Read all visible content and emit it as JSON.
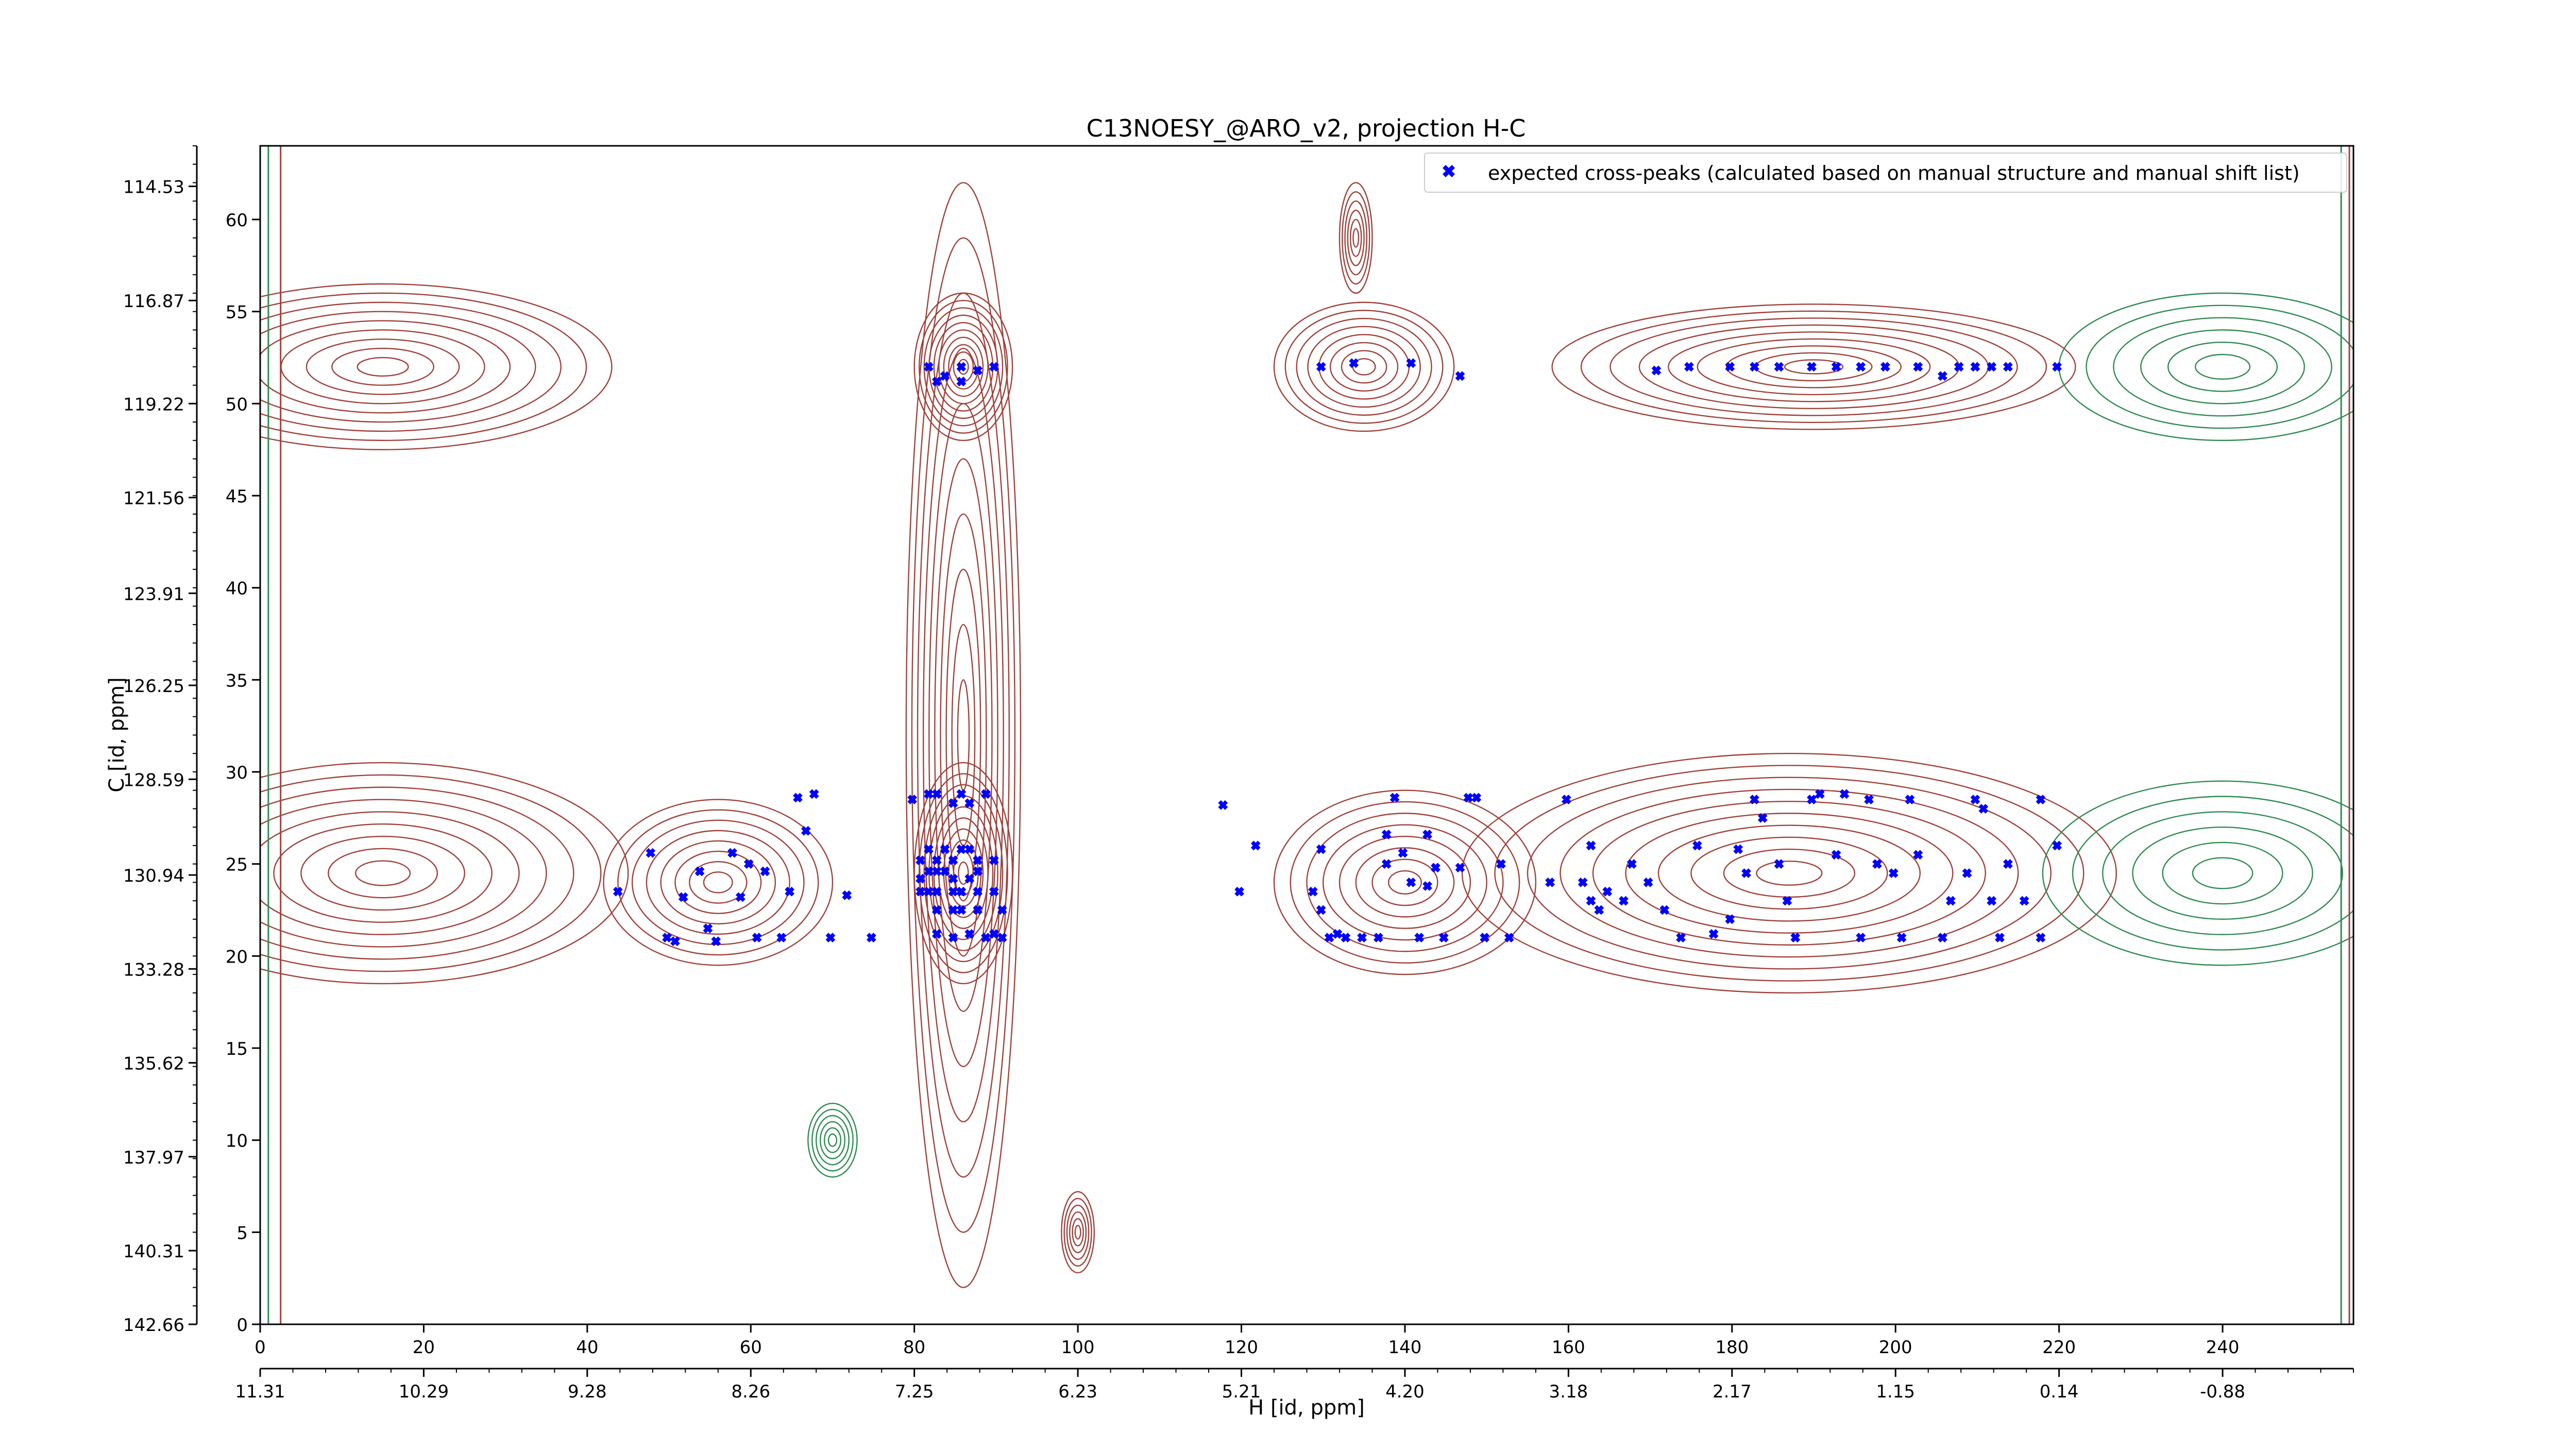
{
  "chart_data": {
    "type": "scatter",
    "title": "C13NOESY_@ARO_v2, projection H-C",
    "xlabel": "H [id, ppm]",
    "ylabel": "C [id, ppm]",
    "xlim": [
      0,
      256
    ],
    "ylim": [
      0,
      64
    ],
    "x_ticks": [
      0,
      20,
      40,
      60,
      80,
      100,
      120,
      140,
      160,
      180,
      200,
      220,
      240
    ],
    "y_ticks": [
      0,
      5,
      10,
      15,
      20,
      25,
      30,
      35,
      40,
      45,
      50,
      55,
      60
    ],
    "x_ppm_ticks": [
      {
        "x": 0,
        "label": "11.31"
      },
      {
        "x": 20,
        "label": "10.29"
      },
      {
        "x": 40,
        "label": "9.28"
      },
      {
        "x": 60,
        "label": "8.26"
      },
      {
        "x": 80,
        "label": "7.25"
      },
      {
        "x": 100,
        "label": "6.23"
      },
      {
        "x": 120,
        "label": "5.21"
      },
      {
        "x": 140,
        "label": "4.20"
      },
      {
        "x": 160,
        "label": "3.18"
      },
      {
        "x": 180,
        "label": "2.17"
      },
      {
        "x": 200,
        "label": "1.15"
      },
      {
        "x": 220,
        "label": "0.14"
      },
      {
        "x": 240,
        "label": "-0.88"
      }
    ],
    "y_ppm_ticks": [
      {
        "y": 61.8,
        "label": "114.53"
      },
      {
        "y": 55.6,
        "label": "116.87"
      },
      {
        "y": 50.0,
        "label": "119.22"
      },
      {
        "y": 44.9,
        "label": "121.56"
      },
      {
        "y": 39.7,
        "label": "123.91"
      },
      {
        "y": 34.7,
        "label": "126.25"
      },
      {
        "y": 29.6,
        "label": "128.59"
      },
      {
        "y": 24.4,
        "label": "130.94"
      },
      {
        "y": 19.3,
        "label": "133.28"
      },
      {
        "y": 14.2,
        "label": "135.62"
      },
      {
        "y": 9.1,
        "label": "137.97"
      },
      {
        "y": 4.0,
        "label": "140.31"
      },
      {
        "y": -1.1,
        "label": "142.66"
      }
    ],
    "legend": {
      "position": "top-right",
      "entries": [
        "expected cross-peaks (calculated based on manual structure and manual shift list)"
      ]
    },
    "grid": false,
    "colors": {
      "points": "#0000ff",
      "positive_contour": "#a0413b",
      "negative_contour": "#2e8b50",
      "axes": "#000000"
    },
    "series": [
      {
        "name": "expected cross-peaks (calculated based on manual structure and manual shift list)",
        "points": [
          [
            82,
            52
          ],
          [
            84,
            51.5
          ],
          [
            86,
            52
          ],
          [
            88,
            51.8
          ],
          [
            90,
            52
          ],
          [
            86,
            51.2
          ],
          [
            83,
            51.2
          ],
          [
            130,
            52
          ],
          [
            134,
            52.2
          ],
          [
            141,
            52.2
          ],
          [
            147,
            51.5
          ],
          [
            171,
            51.8
          ],
          [
            175,
            52
          ],
          [
            180,
            52
          ],
          [
            183,
            52
          ],
          [
            186,
            52
          ],
          [
            190,
            52
          ],
          [
            193,
            52
          ],
          [
            196,
            52
          ],
          [
            199,
            52
          ],
          [
            203,
            52
          ],
          [
            206,
            51.5
          ],
          [
            208,
            52
          ],
          [
            210,
            52
          ],
          [
            212,
            52
          ],
          [
            214,
            52
          ],
          [
            220,
            52
          ],
          [
            44,
            23.5
          ],
          [
            48,
            25.6
          ],
          [
            50,
            21
          ],
          [
            51,
            20.8
          ],
          [
            52,
            23.2
          ],
          [
            54,
            24.6
          ],
          [
            55,
            21.5
          ],
          [
            56,
            20.8
          ],
          [
            58,
            25.6
          ],
          [
            59,
            23.2
          ],
          [
            60,
            25
          ],
          [
            61,
            21
          ],
          [
            62,
            24.6
          ],
          [
            64,
            21
          ],
          [
            65,
            23.5
          ],
          [
            66,
            28.6
          ],
          [
            67,
            26.8
          ],
          [
            68,
            28.8
          ],
          [
            70,
            21
          ],
          [
            72,
            23.3
          ],
          [
            75,
            21
          ],
          [
            80,
            28.5
          ],
          [
            82,
            28.8
          ],
          [
            83,
            28.8
          ],
          [
            85,
            28.3
          ],
          [
            86,
            28.8
          ],
          [
            87,
            28.3
          ],
          [
            89,
            28.8
          ],
          [
            81,
            25.2
          ],
          [
            82,
            25.8
          ],
          [
            83,
            25.2
          ],
          [
            84,
            25.8
          ],
          [
            85,
            25.2
          ],
          [
            86,
            25.8
          ],
          [
            87,
            25.8
          ],
          [
            88,
            25.2
          ],
          [
            90,
            25.2
          ],
          [
            81,
            24.2
          ],
          [
            82,
            24.6
          ],
          [
            83,
            24.6
          ],
          [
            84,
            24.6
          ],
          [
            85,
            24.2
          ],
          [
            87,
            24.2
          ],
          [
            88,
            24.6
          ],
          [
            81,
            23.5
          ],
          [
            82,
            23.5
          ],
          [
            83,
            23.5
          ],
          [
            85,
            23.5
          ],
          [
            86,
            23.5
          ],
          [
            88,
            23.5
          ],
          [
            90,
            23.5
          ],
          [
            83,
            22.5
          ],
          [
            85,
            22.5
          ],
          [
            86,
            22.5
          ],
          [
            88,
            22.5
          ],
          [
            91,
            22.5
          ],
          [
            83,
            21.2
          ],
          [
            85,
            21
          ],
          [
            87,
            21.2
          ],
          [
            89,
            21
          ],
          [
            90,
            21.2
          ],
          [
            91,
            21
          ],
          [
            118,
            28.2
          ],
          [
            120,
            23.5
          ],
          [
            122,
            26
          ],
          [
            129,
            23.5
          ],
          [
            130,
            22.5
          ],
          [
            130,
            25.8
          ],
          [
            131,
            21
          ],
          [
            132,
            21.2
          ],
          [
            133,
            21
          ],
          [
            135,
            21
          ],
          [
            137,
            21
          ],
          [
            138,
            26.6
          ],
          [
            138,
            25
          ],
          [
            139,
            28.6
          ],
          [
            140,
            25.6
          ],
          [
            141,
            24
          ],
          [
            142,
            21
          ],
          [
            143,
            26.6
          ],
          [
            143,
            23.8
          ],
          [
            144,
            24.8
          ],
          [
            145,
            21
          ],
          [
            147,
            24.8
          ],
          [
            148,
            28.6
          ],
          [
            149,
            28.6
          ],
          [
            150,
            21
          ],
          [
            152,
            25
          ],
          [
            153,
            21
          ],
          [
            158,
            24
          ],
          [
            160,
            28.5
          ],
          [
            162,
            24
          ],
          [
            163,
            26
          ],
          [
            163,
            23
          ],
          [
            164,
            22.5
          ],
          [
            165,
            23.5
          ],
          [
            167,
            23
          ],
          [
            168,
            25
          ],
          [
            170,
            24
          ],
          [
            172,
            22.5
          ],
          [
            174,
            21
          ],
          [
            176,
            26
          ],
          [
            178,
            21.2
          ],
          [
            180,
            22
          ],
          [
            181,
            25.8
          ],
          [
            182,
            24.5
          ],
          [
            183,
            28.5
          ],
          [
            184,
            27.5
          ],
          [
            186,
            25
          ],
          [
            187,
            23
          ],
          [
            188,
            21
          ],
          [
            190,
            28.5
          ],
          [
            191,
            28.8
          ],
          [
            193,
            25.5
          ],
          [
            194,
            28.8
          ],
          [
            196,
            21
          ],
          [
            197,
            28.5
          ],
          [
            198,
            25
          ],
          [
            200,
            24.5
          ],
          [
            201,
            21
          ],
          [
            202,
            28.5
          ],
          [
            203,
            25.5
          ],
          [
            206,
            21
          ],
          [
            207,
            23
          ],
          [
            209,
            24.5
          ],
          [
            210,
            28.5
          ],
          [
            211,
            28
          ],
          [
            212,
            23
          ],
          [
            213,
            21
          ],
          [
            214,
            25
          ],
          [
            216,
            23
          ],
          [
            218,
            28.5
          ],
          [
            218,
            21
          ],
          [
            220,
            26
          ]
        ]
      }
    ]
  }
}
